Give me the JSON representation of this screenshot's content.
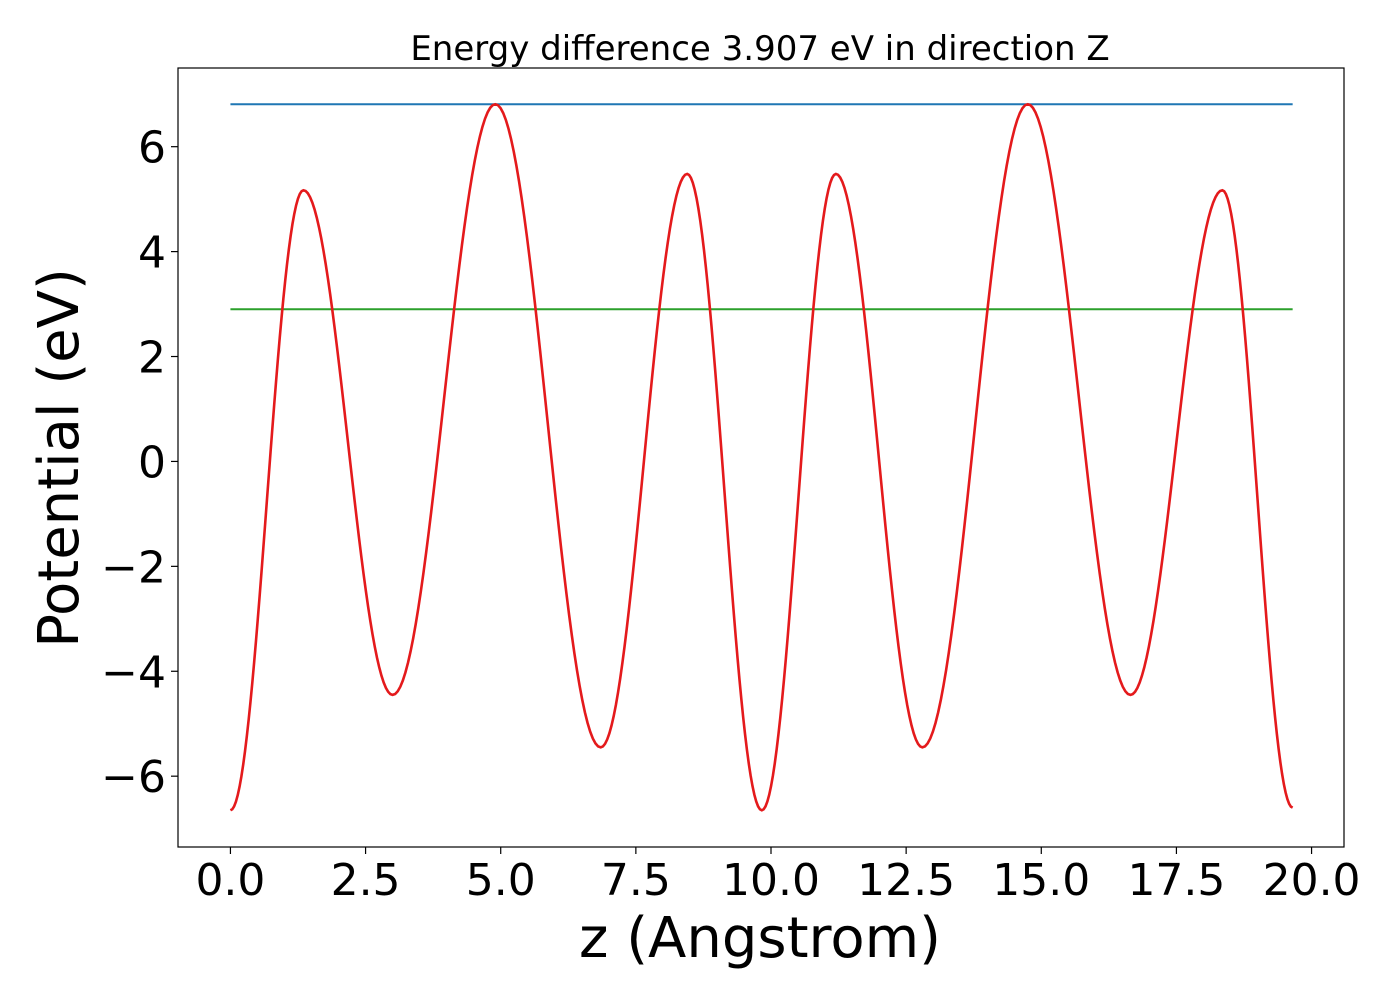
{
  "chart_data": {
    "type": "line",
    "title": "Energy difference 3.907 eV in direction Z",
    "xlabel": "z (Angstrom)",
    "ylabel": "Potential (eV)",
    "xlim": [
      -0.97,
      20.6
    ],
    "ylim": [
      -7.35,
      7.5
    ],
    "xticks": [
      0.0,
      2.5,
      5.0,
      7.5,
      10.0,
      12.5,
      15.0,
      17.5,
      20.0
    ],
    "xtick_labels": [
      "0.0",
      "2.5",
      "5.0",
      "7.5",
      "10.0",
      "12.5",
      "15.0",
      "17.5",
      "20.0"
    ],
    "yticks": [
      -6,
      -4,
      -2,
      0,
      2,
      4,
      6
    ],
    "ytick_labels": [
      "−6",
      "−4",
      "−2",
      "0",
      "2",
      "4",
      "6"
    ],
    "grid": false,
    "series": [
      {
        "color": "#1f77b4",
        "x": [
          0.0,
          19.65
        ],
        "y": [
          6.81,
          6.81
        ]
      },
      {
        "color": "#2ca02c",
        "x": [
          0.0,
          19.65
        ],
        "y": [
          2.9,
          2.9
        ]
      },
      {
        "color": "#e41a1c",
        "x": [
          0.0,
          1.35,
          3.0,
          4.9,
          6.85,
          8.45,
          9.83,
          11.2,
          12.8,
          14.75,
          16.65,
          18.35,
          19.65
        ],
        "y": [
          -6.65,
          5.17,
          -4.45,
          6.81,
          -5.45,
          5.48,
          -6.65,
          5.48,
          -5.45,
          6.81,
          -4.45,
          5.17,
          -6.6
        ]
      }
    ]
  }
}
